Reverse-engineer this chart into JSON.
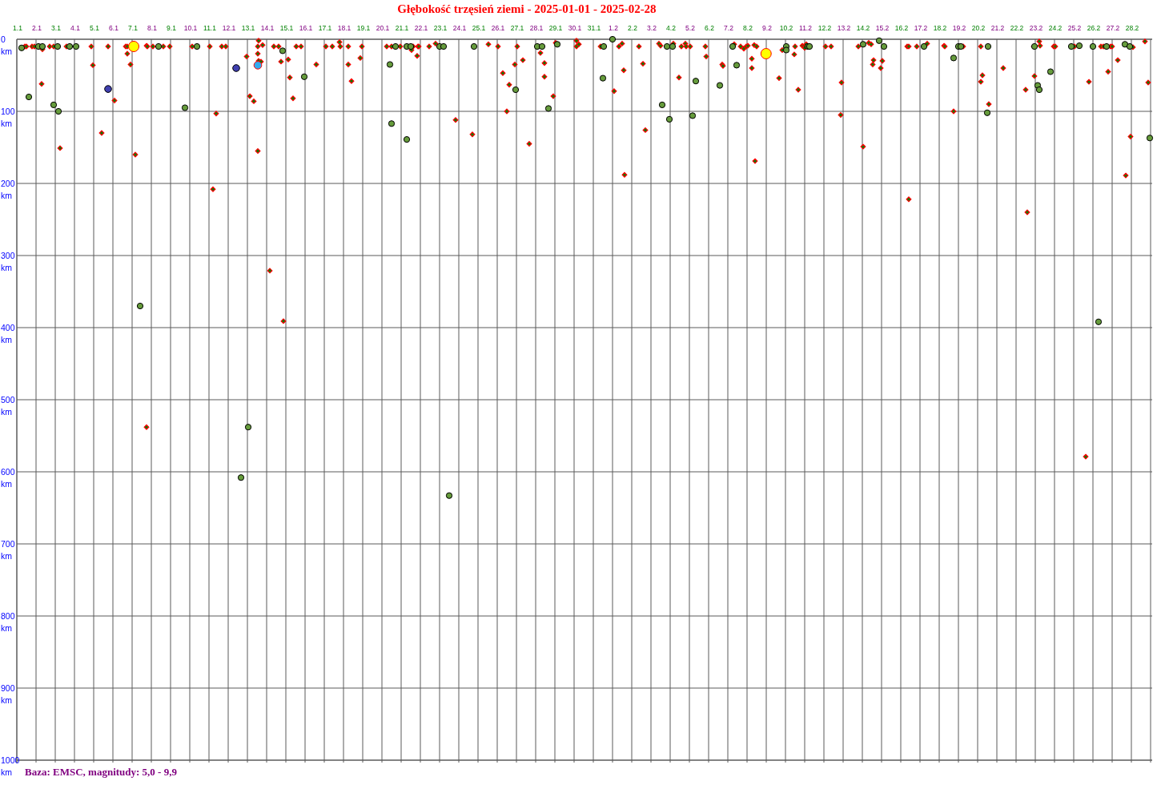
{
  "chart_data": {
    "type": "bubble",
    "title": "Głębokość trzęsień ziemi - 2025-01-01 - 2025-02-28",
    "annotations": [
      "Baza: EMSC, magnitudy: 5,0 - 9,9"
    ],
    "xlim": [
      "2025-01-01",
      "2025-03-01"
    ],
    "xticks": [
      {
        "value": "2025-01-01",
        "label": "1.1"
      },
      {
        "value": "2025-01-02",
        "label": "2.1"
      },
      {
        "value": "2025-01-03",
        "label": "3.1"
      },
      {
        "value": "2025-01-04",
        "label": "4.1"
      },
      {
        "value": "2025-01-05",
        "label": "5.1"
      },
      {
        "value": "2025-01-06",
        "label": "6.1"
      },
      {
        "value": "2025-01-07",
        "label": "7.1"
      },
      {
        "value": "2025-01-08",
        "label": "8.1"
      },
      {
        "value": "2025-01-09",
        "label": "9.1"
      },
      {
        "value": "2025-01-10",
        "label": "10.1"
      },
      {
        "value": "2025-01-11",
        "label": "11.1"
      },
      {
        "value": "2025-01-12",
        "label": "12.1"
      },
      {
        "value": "2025-01-13",
        "label": "13.1"
      },
      {
        "value": "2025-01-14",
        "label": "14.1"
      },
      {
        "value": "2025-01-15",
        "label": "15.1"
      },
      {
        "value": "2025-01-16",
        "label": "16.1"
      },
      {
        "value": "2025-01-17",
        "label": "17.1"
      },
      {
        "value": "2025-01-18",
        "label": "18.1"
      },
      {
        "value": "2025-01-19",
        "label": "19.1"
      },
      {
        "value": "2025-01-20",
        "label": "20.1"
      },
      {
        "value": "2025-01-21",
        "label": "21.1"
      },
      {
        "value": "2025-01-22",
        "label": "22.1"
      },
      {
        "value": "2025-01-23",
        "label": "23.1"
      },
      {
        "value": "2025-01-24",
        "label": "24.1"
      },
      {
        "value": "2025-01-25",
        "label": "25.1"
      },
      {
        "value": "2025-01-26",
        "label": "26.1"
      },
      {
        "value": "2025-01-27",
        "label": "27.1"
      },
      {
        "value": "2025-01-28",
        "label": "28.1"
      },
      {
        "value": "2025-01-29",
        "label": "29.1"
      },
      {
        "value": "2025-01-30",
        "label": "30.1"
      },
      {
        "value": "2025-01-31",
        "label": "31.1"
      },
      {
        "value": "2025-02-01",
        "label": "1.2"
      },
      {
        "value": "2025-02-02",
        "label": "2.2"
      },
      {
        "value": "2025-02-03",
        "label": "3.2"
      },
      {
        "value": "2025-02-04",
        "label": "4.2"
      },
      {
        "value": "2025-02-05",
        "label": "5.2"
      },
      {
        "value": "2025-02-06",
        "label": "6.2"
      },
      {
        "value": "2025-02-07",
        "label": "7.2"
      },
      {
        "value": "2025-02-08",
        "label": "8.2"
      },
      {
        "value": "2025-02-09",
        "label": "9.2"
      },
      {
        "value": "2025-02-10",
        "label": "10.2"
      },
      {
        "value": "2025-02-11",
        "label": "11.2"
      },
      {
        "value": "2025-02-12",
        "label": "12.2"
      },
      {
        "value": "2025-02-13",
        "label": "13.2"
      },
      {
        "value": "2025-02-14",
        "label": "14.2"
      },
      {
        "value": "2025-02-15",
        "label": "15.2"
      },
      {
        "value": "2025-02-16",
        "label": "16.2"
      },
      {
        "value": "2025-02-17",
        "label": "17.2"
      },
      {
        "value": "2025-02-18",
        "label": "18.2"
      },
      {
        "value": "2025-02-19",
        "label": "19.2"
      },
      {
        "value": "2025-02-20",
        "label": "20.2"
      },
      {
        "value": "2025-02-21",
        "label": "21.2"
      },
      {
        "value": "2025-02-22",
        "label": "22.2"
      },
      {
        "value": "2025-02-23",
        "label": "23.2"
      },
      {
        "value": "2025-02-24",
        "label": "24.2"
      },
      {
        "value": "2025-02-25",
        "label": "25.2"
      },
      {
        "value": "2025-02-26",
        "label": "26.2"
      },
      {
        "value": "2025-02-27",
        "label": "27.2"
      },
      {
        "value": "2025-02-28",
        "label": "28.2"
      }
    ],
    "ylim": [
      1000,
      0
    ],
    "yticks": [
      {
        "value": 0,
        "label": "0 km"
      },
      {
        "value": 100,
        "label": "100 km"
      },
      {
        "value": 200,
        "label": "200 km"
      },
      {
        "value": 300,
        "label": "300 km"
      },
      {
        "value": 400,
        "label": "400 km"
      },
      {
        "value": 500,
        "label": "500 km"
      },
      {
        "value": 600,
        "label": "600 km"
      },
      {
        "value": 700,
        "label": "700 km"
      },
      {
        "value": 800,
        "label": "800 km"
      },
      {
        "value": 900,
        "label": "900 km"
      },
      {
        "value": 1000,
        "label": "1000 km"
      }
    ],
    "grid": true,
    "series": [
      {
        "marker": "diamond",
        "color": "#008000",
        "x": [
          "2025-01-01T10:00",
          "2025-01-01T12:00",
          "2025-01-01T19:00",
          "2025-01-01T22:00",
          "2025-01-02T08:00",
          "2025-01-02T07:00",
          "2025-01-02T17:00",
          "2025-01-02T22:00",
          "2025-01-03T06:00",
          "2025-01-03T14:00",
          "2025-01-04T21:00",
          "2025-01-04T23:00",
          "2025-01-05T10:00",
          "2025-01-05T18:00",
          "2025-01-06T02:00",
          "2025-01-06T16:00",
          "2025-01-06T18:00",
          "2025-01-06T18:00",
          "2025-01-06T22:00",
          "2025-01-07T04:00",
          "2025-01-07T18:00",
          "2025-01-07T19:00",
          "2025-01-07T18:00",
          "2025-01-08T02:00",
          "2025-01-08T15:00",
          "2025-01-08T23:00",
          "2025-01-10T03:00",
          "2025-01-11T01:00",
          "2025-01-11T09:00",
          "2025-01-11T05:00",
          "2025-01-11T16:00",
          "2025-01-11T21:00",
          "2025-01-12T23:00",
          "2025-01-13T03:00",
          "2025-01-13T08:00",
          "2025-01-13T14:00",
          "2025-01-13T13:00",
          "2025-01-13T19:00",
          "2025-01-13T13:00",
          "2025-01-13T14:00",
          "2025-01-13T17:00",
          "2025-01-13T13:00",
          "2025-01-14T09:00",
          "2025-01-14T15:00",
          "2025-01-14T18:00",
          "2025-01-14T04:00",
          "2025-01-14T21:00",
          "2025-01-15T03:00",
          "2025-01-15T05:00",
          "2025-01-15T09:00",
          "2025-01-15T13:00",
          "2025-01-15T19:00",
          "2025-01-16T14:00",
          "2025-01-17T02:00",
          "2025-01-17T10:00",
          "2025-01-17T19:00",
          "2025-01-17T20:00",
          "2025-01-18T06:00",
          "2025-01-18T06:00",
          "2025-01-18T10:00",
          "2025-01-18T21:00",
          "2025-01-18T23:00",
          "2025-01-20T06:00",
          "2025-01-20T12:00",
          "2025-01-20T23:00",
          "2025-01-21T13:00",
          "2025-01-21T15:00",
          "2025-01-21T21:00",
          "2025-01-21T22:00",
          "2025-01-21T20:00",
          "2025-01-22T11:00",
          "2025-01-22T19:00",
          "2025-01-23T20:00",
          "2025-01-24T17:00",
          "2025-01-25T13:00",
          "2025-01-26T01:00",
          "2025-01-26T07:00",
          "2025-01-26T15:00",
          "2025-01-26T12:00",
          "2025-01-26T22:00",
          "2025-01-27T01:00",
          "2025-01-27T08:00",
          "2025-01-27T16:00",
          "2025-01-28T06:00",
          "2025-01-28T11:00",
          "2025-01-28T11:00",
          "2025-01-28T22:00",
          "2025-01-29T01:00",
          "2025-01-30T03:00",
          "2025-01-30T03:00",
          "2025-01-30T06:00",
          "2025-01-31T09:00",
          "2025-02-01T02:00",
          "2025-02-01T08:00",
          "2025-02-01T12:00",
          "2025-02-01T14:00",
          "2025-02-01T15:00",
          "2025-02-02T17:00",
          "2025-02-02T09:00",
          "2025-02-02T14:00",
          "2025-02-03T10:00",
          "2025-02-03T12:00",
          "2025-02-04T04:00",
          "2025-02-04T11:00",
          "2025-02-04T14:00",
          "2025-02-04T19:00",
          "2025-02-04T20:00",
          "2025-02-05T01:00",
          "2025-02-05T20:00",
          "2025-02-05T21:00",
          "2025-02-06T17:00",
          "2025-02-06T18:00",
          "2025-02-07T08:00",
          "2025-02-07T16:00",
          "2025-02-07T20:00",
          "2025-02-07T23:00",
          "2025-02-08T01:00",
          "2025-02-08T06:00",
          "2025-02-08T06:00",
          "2025-02-08T09:00",
          "2025-02-08T12:00",
          "2025-02-08T10:00",
          "2025-02-09T16:00",
          "2025-02-09T20:00",
          "2025-02-10T11:00",
          "2025-02-10T12:00",
          "2025-02-10T16:00",
          "2025-02-10T21:00",
          "2025-02-10T23:00",
          "2025-02-11T00:00",
          "2025-02-11T02:00",
          "2025-02-12T02:00",
          "2025-02-12T09:00",
          "2025-02-12T22:00",
          "2025-02-12T21:00",
          "2025-02-13T19:00",
          "2025-02-14T01:00",
          "2025-02-14T08:00",
          "2025-02-14T11:00",
          "2025-02-14T14:00",
          "2025-02-14T13:00",
          "2025-02-15T01:00",
          "2025-02-14T23:00",
          "2025-02-16T08:00",
          "2025-02-16T10:00",
          "2025-02-16T20:00",
          "2025-02-16T10:00",
          "2025-02-17T09:00",
          "2025-02-18T06:00",
          "2025-02-18T07:00",
          "2025-02-18T18:00",
          "2025-02-19T06:00",
          "2025-02-20T04:00",
          "2025-02-20T06:00",
          "2025-02-20T04:00",
          "2025-02-20T14:00",
          "2025-02-21T08:00",
          "2025-02-22T12:00",
          "2025-02-22T14:00",
          "2025-02-22T22:00",
          "2025-02-22T23:00",
          "2025-02-23T05:00",
          "2025-02-23T06:00",
          "2025-02-23T23:00",
          "2025-02-24T01:00",
          "2025-02-25T01:00",
          "2025-02-25T19:00",
          "2025-02-25T15:00",
          "2025-02-26T10:00",
          "2025-02-26T13:00",
          "2025-02-26T22:00",
          "2025-02-27T00:00",
          "2025-02-26T19:00",
          "2025-02-27T07:00",
          "2025-02-27T23:00",
          "2025-02-27T17:00",
          "2025-02-28T02:00",
          "2025-02-28T17:00",
          "2025-02-28T21:00"
        ],
        "values": [
          10,
          10,
          10,
          10,
          14,
          62,
          10,
          10,
          151,
          10,
          10,
          36,
          130,
          10,
          85,
          10,
          10,
          20,
          35,
          160,
          9,
          10,
          538,
          10,
          10,
          10,
          10,
          10,
          103,
          208,
          10,
          10,
          24,
          79,
          86,
          2,
          10,
          8,
          20,
          30,
          31,
          155,
          10,
          10,
          31,
          321,
          391,
          28,
          53,
          82,
          10,
          10,
          35,
          10,
          10,
          4,
          10,
          10,
          35,
          58,
          26,
          10,
          10,
          10,
          10,
          15,
          10,
          10,
          10,
          23,
          10,
          6,
          112,
          132,
          7,
          10,
          47,
          63,
          100,
          35,
          10,
          29,
          145,
          19,
          33,
          52,
          79,
          5,
          2,
          10,
          7,
          10,
          72,
          10,
          6,
          43,
          188,
          126,
          10,
          34,
          6,
          9,
          6,
          53,
          10,
          6,
          10,
          10,
          10,
          24,
          35,
          37,
          7,
          10,
          13,
          10,
          9,
          27,
          40,
          8,
          10,
          169,
          54,
          15,
          21,
          10,
          70,
          9,
          10,
          12,
          7,
          10,
          10,
          60,
          105,
          10,
          149,
          5,
          7,
          29,
          35,
          30,
          40,
          10,
          10,
          10,
          222,
          6,
          9,
          10,
          100,
          10,
          10,
          50,
          59,
          90,
          40,
          70,
          240,
          10,
          51,
          3,
          9,
          10,
          10,
          10,
          59,
          579,
          10,
          10,
          10,
          10,
          45,
          29,
          135,
          189,
          11,
          3,
          60
        ],
        "sizes": [
          0.19,
          0.19,
          0.19,
          0.19,
          0.19,
          0.19,
          0.19,
          0.19,
          0.19,
          0.19,
          0.19,
          0.19,
          0.19,
          0.19,
          0.19,
          0.19,
          0.19,
          0.19,
          0.19,
          0.19,
          0.19,
          0.19,
          0.19,
          0.19,
          0.19,
          0.19,
          0.19,
          0.19,
          0.19,
          0.19,
          0.19,
          0.19,
          0.19,
          0.19,
          0.19,
          0.19,
          0.19,
          0.19,
          0.19,
          0.19,
          0.19,
          0.19,
          0.19,
          0.19,
          0.19,
          0.19,
          0.19,
          0.19,
          0.19,
          0.19,
          0.19,
          0.19,
          0.19,
          0.19,
          0.19,
          0.19,
          0.19,
          0.19,
          0.19,
          0.19,
          0.19,
          0.19,
          0.19,
          0.19,
          0.19,
          0.19,
          0.19,
          0.19,
          0.19,
          0.19,
          0.19,
          0.19,
          0.19,
          0.19,
          0.19,
          0.19,
          0.19,
          0.19,
          0.19,
          0.19,
          0.19,
          0.19,
          0.19,
          0.19,
          0.19,
          0.19,
          0.19,
          0.19,
          0.19,
          0.19,
          0.19,
          0.19,
          0.19,
          0.19,
          0.19,
          0.19,
          0.19,
          0.19,
          0.19,
          0.19,
          0.19,
          0.19,
          0.19,
          0.19,
          0.19,
          0.19,
          0.19,
          0.19,
          0.19,
          0.19,
          0.19,
          0.19,
          0.19,
          0.19,
          0.19,
          0.19,
          0.19,
          0.19,
          0.19,
          0.19,
          0.19,
          0.19,
          0.19,
          0.19,
          0.19,
          0.19,
          0.19,
          0.19,
          0.19,
          0.19,
          0.19,
          0.19,
          0.19,
          0.19,
          0.19,
          0.19,
          0.19,
          0.19,
          0.19,
          0.19,
          0.19,
          0.19,
          0.19,
          0.19,
          0.19,
          0.19,
          0.19,
          0.19,
          0.19,
          0.19,
          0.19,
          0.19,
          0.19,
          0.19,
          0.19,
          0.19,
          0.19,
          0.19,
          0.19,
          0.19,
          0.19,
          0.19,
          0.19,
          0.19,
          0.19,
          0.19,
          0.19,
          0.19,
          0.19,
          0.19,
          0.19,
          0.19,
          0.19,
          0.19,
          0.19,
          0.19,
          0.19,
          0.19,
          0.19
        ]
      },
      {
        "marker": "circle",
        "color": "#669c3c",
        "x": [
          "2025-01-01T06:00",
          "2025-01-02T03:00",
          "2025-01-02T08:00",
          "2025-01-01T15:00",
          "2025-01-03T03:00",
          "2025-01-02T22:00",
          "2025-01-03T04:00",
          "2025-01-03T18:00",
          "2025-01-04T02:00",
          "2025-01-07T10:00",
          "2025-01-08T09:00",
          "2025-01-09T18:00",
          "2025-01-10T09:00",
          "2025-01-12T16:00",
          "2025-01-13T01:00",
          "2025-01-14T20:00",
          "2025-01-15T23:00",
          "2025-01-20T17:00",
          "2025-01-20T10:00",
          "2025-01-20T12:00",
          "2025-01-21T07:00",
          "2025-01-21T12:00",
          "2025-01-21T07:00",
          "2025-01-23T00:00",
          "2025-01-23T05:00",
          "2025-01-23T12:00",
          "2025-01-24T19:00",
          "2025-01-26T23:00",
          "2025-01-28T02:00",
          "2025-01-28T08:00",
          "2025-01-28T16:00",
          "2025-01-29T03:00",
          "2025-01-31T13:00",
          "2025-01-31T12:00",
          "2025-02-01T00:00",
          "2025-02-03T20:00",
          "2025-02-03T14:00",
          "2025-02-03T23:00",
          "2025-02-04T03:00",
          "2025-02-05T08:00",
          "2025-02-05T04:00",
          "2025-02-06T14:00",
          "2025-02-07T06:00",
          "2025-02-07T11:00",
          "2025-02-10T01:00",
          "2025-02-10T01:00",
          "2025-02-11T04:00",
          "2025-02-11T06:00",
          "2025-02-14T01:00",
          "2025-02-14T21:00",
          "2025-02-15T03:00",
          "2025-02-17T05:00",
          "2025-02-18T18:00",
          "2025-02-19T00:00",
          "2025-02-19T03:00",
          "2025-02-20T13:00",
          "2025-02-20T12:00",
          "2025-02-22T23:00",
          "2025-02-23T03:00",
          "2025-02-23T05:00",
          "2025-02-23T19:00",
          "2025-02-24T21:00",
          "2025-02-25T07:00",
          "2025-02-26T00:00",
          "2025-02-26T17:00",
          "2025-02-26T07:00",
          "2025-02-27T16:00",
          "2025-02-27T22:00",
          "2025-02-28T23:00"
        ],
        "values": [
          12,
          10,
          10,
          80,
          10,
          91,
          100,
          10,
          10,
          370,
          10,
          95,
          10,
          608,
          538,
          16,
          52,
          10,
          35,
          117,
          10,
          10,
          139,
          10,
          10,
          633,
          10,
          70,
          10,
          10,
          96,
          7,
          10,
          54,
          0,
          10,
          91,
          111,
          10,
          58,
          106,
          64,
          10,
          36,
          10,
          15,
          10,
          10,
          7,
          2,
          10,
          10,
          26,
          10,
          10,
          10,
          102,
          10,
          64,
          70,
          45,
          10,
          9,
          10,
          10,
          392,
          7,
          10,
          137
        ],
        "sizes": [
          0.31,
          0.31,
          0.31,
          0.31,
          0.31,
          0.31,
          0.31,
          0.31,
          0.31,
          0.31,
          0.31,
          0.31,
          0.31,
          0.31,
          0.31,
          0.31,
          0.31,
          0.31,
          0.31,
          0.31,
          0.31,
          0.31,
          0.31,
          0.31,
          0.31,
          0.31,
          0.31,
          0.31,
          0.31,
          0.31,
          0.31,
          0.31,
          0.31,
          0.31,
          0.31,
          0.31,
          0.31,
          0.31,
          0.31,
          0.31,
          0.31,
          0.31,
          0.31,
          0.31,
          0.31,
          0.31,
          0.31,
          0.31,
          0.31,
          0.31,
          0.31,
          0.31,
          0.31,
          0.31,
          0.31,
          0.31,
          0.31,
          0.31,
          0.31,
          0.31,
          0.31,
          0.31,
          0.31,
          0.31,
          0.31,
          0.31,
          0.31,
          0.31,
          0.31
        ]
      },
      {
        "marker": "circle",
        "color": "#4040b0",
        "x": [
          "2025-01-05T18:00",
          "2025-01-12T10:00"
        ],
        "values": [
          69,
          40
        ],
        "sizes": [
          0.44,
          0.44
        ]
      },
      {
        "marker": "circle",
        "color": "#33aaee",
        "x": [
          "2025-01-13T13:00"
        ],
        "values": [
          36
        ],
        "sizes": [
          0.55
        ]
      },
      {
        "marker": "circle",
        "color": "#ffff00",
        "x": [
          "2025-01-07T02:00",
          "2025-02-08T23:45"
        ],
        "values": [
          10,
          20
        ],
        "sizes": [
          1,
          1
        ]
      }
    ]
  }
}
